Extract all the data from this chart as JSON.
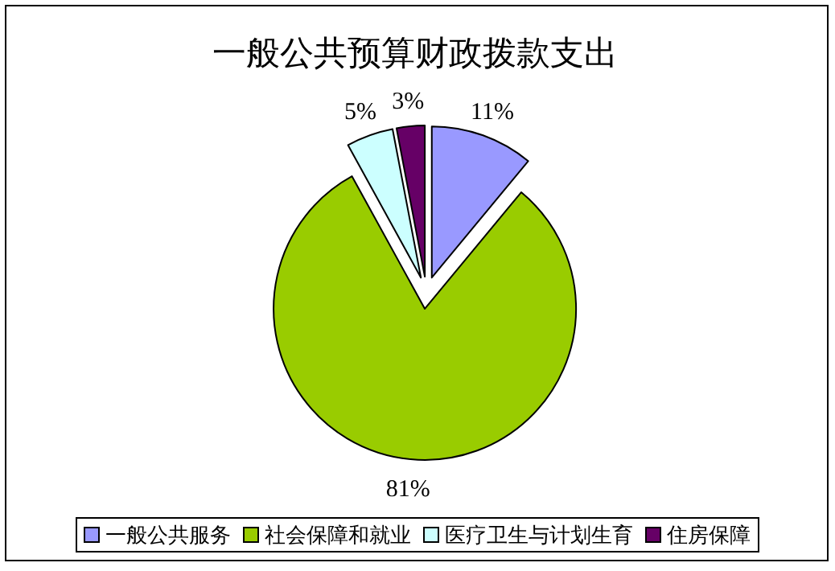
{
  "chart_data": {
    "type": "pie",
    "title": "一般公共预算财政拨款支出",
    "categories": [
      "一般公共服务",
      "社会保障和就业",
      "医疗卫生与计划生育",
      "住房保障"
    ],
    "values": [
      11,
      81,
      5,
      3
    ],
    "value_labels": [
      "11%",
      "81%",
      "5%",
      "3%"
    ],
    "colors": [
      "#9999ff",
      "#99cc00",
      "#ccffff",
      "#660066"
    ],
    "legend": "bottom"
  }
}
